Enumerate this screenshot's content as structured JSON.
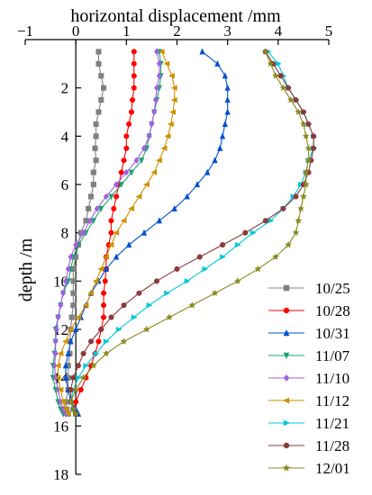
{
  "chart_data": {
    "type": "line",
    "orientation": "depth-profile",
    "title": "",
    "xlabel": "horizontal displacement /mm",
    "ylabel": "depth /m",
    "xlim": [
      -1,
      5
    ],
    "ylim": [
      0,
      18
    ],
    "y_inverted": true,
    "x_axis_position": "top",
    "xticks": [
      -1,
      0,
      1,
      2,
      3,
      4,
      5
    ],
    "yticks": [
      2,
      4,
      6,
      8,
      10,
      12,
      14,
      16,
      18
    ],
    "grid": false,
    "legend_position": "bottom-right",
    "series": [
      {
        "name": "10/25",
        "color": "#808080",
        "marker": "square",
        "x": [
          0.45,
          0.45,
          0.5,
          0.55,
          0.5,
          0.45,
          0.4,
          0.4,
          0.38,
          0.4,
          0.35,
          0.35,
          0.3,
          0.25,
          0.2,
          0.1,
          0.05,
          0,
          -0.05,
          -0.05,
          -0.05,
          -0.05,
          -0.08,
          -0.1,
          -0.12,
          -0.12,
          -0.15,
          -0.15,
          -0.15,
          -0.2,
          -0.18,
          -0.15
        ],
        "y": [
          0.5,
          1,
          1.5,
          2,
          2.5,
          3,
          3.5,
          4,
          4.5,
          5,
          5.5,
          6,
          6.5,
          7,
          7.5,
          8,
          8.5,
          9,
          9.5,
          10,
          10.5,
          11,
          11.5,
          12,
          12.5,
          13,
          13.5,
          14,
          14.5,
          15,
          15.3,
          15.5
        ]
      },
      {
        "name": "10/28",
        "color": "#ff0000",
        "marker": "circle",
        "x": [
          1.15,
          1.15,
          1.15,
          1.15,
          1.12,
          1.1,
          1.05,
          1.0,
          1.0,
          0.95,
          0.9,
          0.85,
          0.8,
          0.75,
          0.7,
          0.7,
          0.65,
          0.6,
          0.6,
          0.58,
          0.55,
          0.55,
          0.55,
          0.5,
          0.45,
          0.38,
          0.3,
          0.2,
          0.1,
          0.0,
          -0.05,
          0
        ],
        "y": [
          0.5,
          1,
          1.5,
          2,
          2.5,
          3,
          3.5,
          4,
          4.5,
          5,
          5.5,
          6,
          6.5,
          7,
          7.5,
          8,
          8.5,
          9,
          9.5,
          10,
          10.5,
          11,
          11.5,
          12,
          12.5,
          13,
          13.5,
          14,
          14.5,
          15,
          15.3,
          15.5
        ]
      },
      {
        "name": "10/31",
        "color": "#0050d0",
        "marker": "triangle-up",
        "x": [
          2.5,
          2.8,
          2.95,
          3.0,
          3.0,
          3.0,
          2.95,
          2.9,
          2.85,
          2.75,
          2.6,
          2.4,
          2.2,
          1.95,
          1.65,
          1.35,
          1.05,
          0.8,
          0.6,
          0.45,
          0.3,
          0.2,
          0.1,
          0.0,
          -0.1,
          -0.15,
          -0.2,
          -0.2,
          -0.15,
          -0.1,
          0,
          0.05
        ],
        "y": [
          0.5,
          1,
          1.5,
          2,
          2.5,
          3,
          3.5,
          4,
          4.5,
          5,
          5.5,
          6,
          6.5,
          7,
          7.5,
          8,
          8.5,
          9,
          9.5,
          10,
          10.5,
          11,
          11.5,
          12,
          12.5,
          13,
          13.5,
          14,
          14.5,
          15,
          15.3,
          15.5
        ]
      },
      {
        "name": "11/07",
        "color": "#20a070",
        "marker": "triangle-down",
        "x": [
          1.65,
          1.68,
          1.68,
          1.65,
          1.6,
          1.55,
          1.5,
          1.45,
          1.4,
          1.3,
          1.1,
          0.9,
          0.7,
          0.5,
          0.35,
          0.2,
          0.05,
          -0.05,
          -0.1,
          -0.15,
          -0.25,
          -0.3,
          -0.35,
          -0.4,
          -0.4,
          -0.42,
          -0.45,
          -0.45,
          -0.4,
          -0.35,
          -0.3,
          -0.25
        ],
        "y": [
          0.5,
          1,
          1.5,
          2,
          2.5,
          3,
          3.5,
          4,
          4.5,
          5,
          5.5,
          6,
          6.5,
          7,
          7.5,
          8,
          8.5,
          9,
          9.5,
          10,
          10.5,
          11,
          11.5,
          12,
          12.5,
          13,
          13.5,
          14,
          14.5,
          15,
          15.3,
          15.5
        ]
      },
      {
        "name": "11/10",
        "color": "#a060e0",
        "marker": "diamond",
        "x": [
          1.6,
          1.65,
          1.65,
          1.6,
          1.58,
          1.55,
          1.5,
          1.45,
          1.35,
          1.2,
          1.0,
          0.8,
          0.6,
          0.42,
          0.28,
          0.15,
          0.0,
          -0.1,
          -0.15,
          -0.2,
          -0.25,
          -0.3,
          -0.35,
          -0.38,
          -0.4,
          -0.4,
          -0.42,
          -0.4,
          -0.35,
          -0.3,
          -0.25,
          -0.2
        ],
        "y": [
          0.5,
          1,
          1.5,
          2,
          2.5,
          3,
          3.5,
          4,
          4.5,
          5,
          5.5,
          6,
          6.5,
          7,
          7.5,
          8,
          8.5,
          9,
          9.5,
          10,
          10.5,
          11,
          11.5,
          12,
          12.5,
          13,
          13.5,
          14,
          14.5,
          15,
          15.3,
          15.5
        ]
      },
      {
        "name": "11/12",
        "color": "#d09000",
        "marker": "triangle-left",
        "x": [
          1.7,
          1.8,
          1.9,
          1.95,
          1.95,
          1.92,
          1.88,
          1.82,
          1.75,
          1.65,
          1.55,
          1.4,
          1.25,
          1.1,
          0.95,
          0.8,
          0.7,
          0.6,
          0.5,
          0.4,
          0.3,
          0.2,
          0.05,
          -0.1,
          -0.2,
          -0.3,
          -0.35,
          -0.35,
          -0.3,
          -0.25,
          -0.2,
          -0.15
        ],
        "y": [
          0.5,
          1,
          1.5,
          2,
          2.5,
          3,
          3.5,
          4,
          4.5,
          5,
          5.5,
          6,
          6.5,
          7,
          7.5,
          8,
          8.5,
          9,
          9.5,
          10,
          10.5,
          11,
          11.5,
          12,
          12.5,
          13,
          13.5,
          14,
          14.5,
          15,
          15.3,
          15.5
        ]
      },
      {
        "name": "11/21",
        "color": "#00c8d8",
        "marker": "triangle-right",
        "x": [
          3.8,
          4.0,
          4.1,
          4.2,
          4.35,
          4.5,
          4.6,
          4.7,
          4.7,
          4.6,
          4.55,
          4.45,
          4.3,
          4.1,
          3.85,
          3.5,
          3.2,
          2.9,
          2.55,
          2.2,
          1.8,
          1.45,
          1.15,
          0.85,
          0.6,
          0.4,
          0.2,
          0.05,
          -0.05,
          -0.1,
          -0.05,
          0
        ],
        "y": [
          0.5,
          1,
          1.5,
          2,
          2.5,
          3,
          3.5,
          4,
          4.5,
          5,
          5.5,
          6,
          6.5,
          7,
          7.5,
          8,
          8.5,
          9,
          9.5,
          10,
          10.5,
          11,
          11.5,
          12,
          12.5,
          13,
          13.5,
          14,
          14.5,
          15,
          15.3,
          15.5
        ]
      },
      {
        "name": "11/28",
        "color": "#8b3a3a",
        "marker": "circle",
        "x": [
          3.75,
          3.9,
          4.05,
          4.2,
          4.35,
          4.5,
          4.6,
          4.7,
          4.7,
          4.65,
          4.6,
          4.5,
          4.35,
          4.1,
          3.75,
          3.35,
          2.9,
          2.45,
          2.0,
          1.6,
          1.25,
          0.95,
          0.7,
          0.5,
          0.3,
          0.15,
          0.05,
          -0.05,
          -0.1,
          -0.1,
          -0.05,
          0
        ],
        "y": [
          0.5,
          1,
          1.5,
          2,
          2.5,
          3,
          3.5,
          4,
          4.5,
          5,
          5.5,
          6,
          6.5,
          7,
          7.5,
          8,
          8.5,
          9,
          9.5,
          10,
          10.5,
          11,
          11.5,
          12,
          12.5,
          13,
          13.5,
          14,
          14.5,
          15,
          15.3,
          15.5
        ]
      },
      {
        "name": "12/01",
        "color": "#8a8a20",
        "marker": "star",
        "x": [
          3.75,
          3.85,
          3.95,
          4.1,
          4.25,
          4.4,
          4.5,
          4.55,
          4.6,
          4.6,
          4.55,
          4.55,
          4.5,
          4.45,
          4.4,
          4.35,
          4.2,
          3.95,
          3.6,
          3.2,
          2.75,
          2.3,
          1.85,
          1.4,
          0.95,
          0.6,
          0.35,
          0.15,
          0.0,
          -0.1,
          -0.05,
          0
        ],
        "y": [
          0.5,
          1,
          1.5,
          2,
          2.5,
          3,
          3.5,
          4,
          4.5,
          5,
          5.5,
          6,
          6.5,
          7,
          7.5,
          8,
          8.5,
          9,
          9.5,
          10,
          10.5,
          11,
          11.5,
          12,
          12.5,
          13,
          13.5,
          14,
          14.5,
          15,
          15.3,
          15.5
        ]
      }
    ]
  }
}
